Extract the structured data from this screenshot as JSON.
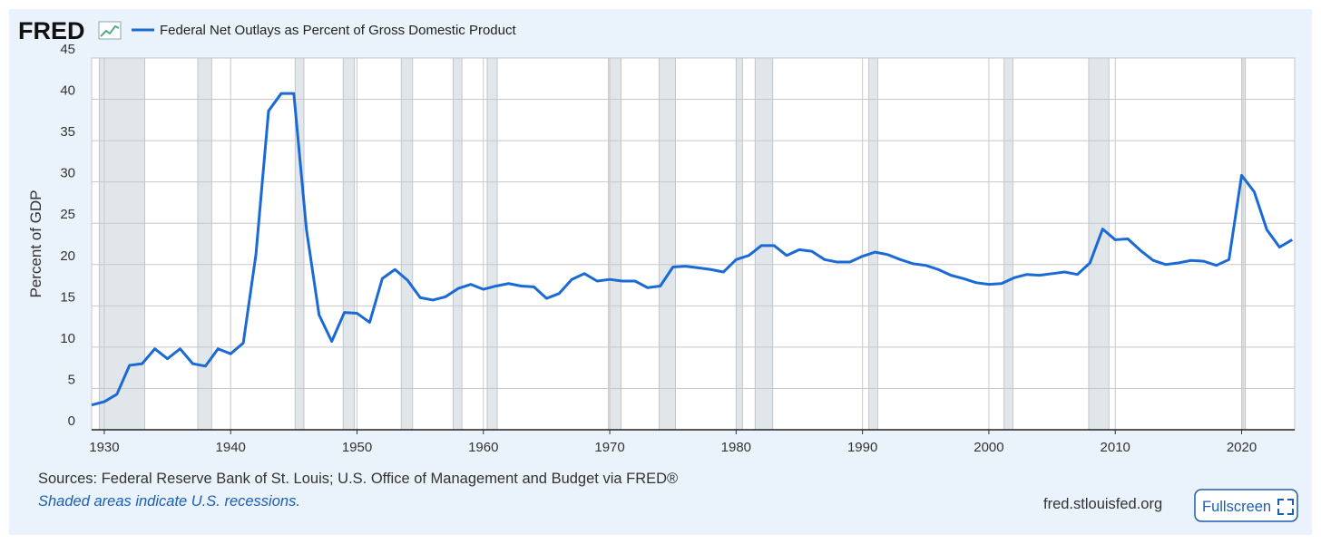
{
  "brand": "FRED",
  "chart_data": {
    "type": "line",
    "ylabel": "Percent of GDP",
    "x": [
      1929,
      1930,
      1931,
      1932,
      1933,
      1934,
      1935,
      1936,
      1937,
      1938,
      1939,
      1940,
      1941,
      1942,
      1943,
      1944,
      1945,
      1946,
      1947,
      1948,
      1949,
      1950,
      1951,
      1952,
      1953,
      1954,
      1955,
      1956,
      1957,
      1958,
      1959,
      1960,
      1961,
      1962,
      1963,
      1964,
      1965,
      1966,
      1967,
      1968,
      1969,
      1970,
      1971,
      1972,
      1973,
      1974,
      1975,
      1976,
      1977,
      1978,
      1979,
      1980,
      1981,
      1982,
      1983,
      1984,
      1985,
      1986,
      1987,
      1988,
      1989,
      1990,
      1991,
      1992,
      1993,
      1994,
      1995,
      1996,
      1997,
      1998,
      1999,
      2000,
      2001,
      2002,
      2003,
      2004,
      2005,
      2006,
      2007,
      2008,
      2009,
      2010,
      2011,
      2012,
      2013,
      2014,
      2015,
      2016,
      2017,
      2018,
      2019,
      2020,
      2021,
      2022,
      2023,
      2024
    ],
    "series": [
      {
        "name": "Federal Net Outlays as Percent of Gross Domestic Product",
        "color": "#1a6ad6",
        "values": [
          3.0,
          3.4,
          4.3,
          7.8,
          8.0,
          9.8,
          8.6,
          9.8,
          8.0,
          7.7,
          9.8,
          9.2,
          10.5,
          21.2,
          38.6,
          40.7,
          40.7,
          24.2,
          13.9,
          10.7,
          14.2,
          14.1,
          13.0,
          18.3,
          19.4,
          18.1,
          16.0,
          15.7,
          16.1,
          17.1,
          17.6,
          17.0,
          17.4,
          17.7,
          17.4,
          17.3,
          15.9,
          16.5,
          18.2,
          18.9,
          18.0,
          18.2,
          18.0,
          18.0,
          17.2,
          17.4,
          19.7,
          19.8,
          19.6,
          19.4,
          19.1,
          20.6,
          21.1,
          22.3,
          22.3,
          21.1,
          21.8,
          21.6,
          20.6,
          20.3,
          20.3,
          21.0,
          21.5,
          21.2,
          20.6,
          20.1,
          19.9,
          19.4,
          18.7,
          18.3,
          17.8,
          17.6,
          17.7,
          18.4,
          18.8,
          18.7,
          18.9,
          19.1,
          18.8,
          20.2,
          24.3,
          23.0,
          23.1,
          21.7,
          20.5,
          20.0,
          20.2,
          20.5,
          20.4,
          19.9,
          20.6,
          30.8,
          28.8,
          24.2,
          22.1,
          23.0
        ]
      }
    ],
    "recessions": [
      [
        1929.6,
        1933.2
      ],
      [
        1937.4,
        1938.5
      ],
      [
        1945.1,
        1945.8
      ],
      [
        1948.9,
        1949.8
      ],
      [
        1953.5,
        1954.4
      ],
      [
        1957.6,
        1958.3
      ],
      [
        1960.3,
        1961.1
      ],
      [
        1969.9,
        1970.9
      ],
      [
        1973.9,
        1975.2
      ],
      [
        1980.0,
        1980.5
      ],
      [
        1981.5,
        1982.9
      ],
      [
        1990.5,
        1991.2
      ],
      [
        2001.2,
        2001.9
      ],
      [
        2007.9,
        2009.5
      ],
      [
        2020.1,
        2020.3
      ]
    ],
    "recession_color": "#e1e6ea",
    "xlim": [
      1929,
      2024.2
    ],
    "xticks": [
      1930,
      1940,
      1950,
      1960,
      1970,
      1980,
      1990,
      2000,
      2010,
      2020
    ],
    "ylim": [
      0,
      45
    ],
    "yticks": [
      0,
      5,
      10,
      15,
      20,
      25,
      30,
      35,
      40,
      45
    ],
    "grid": true
  },
  "footer": {
    "sources": "Sources: Federal Reserve Bank of St. Louis; U.S. Office of Management and Budget via FRED®",
    "note": "Shaded areas indicate U.S. recessions.",
    "site": "fred.stlouisfed.org",
    "button": "Fullscreen"
  }
}
